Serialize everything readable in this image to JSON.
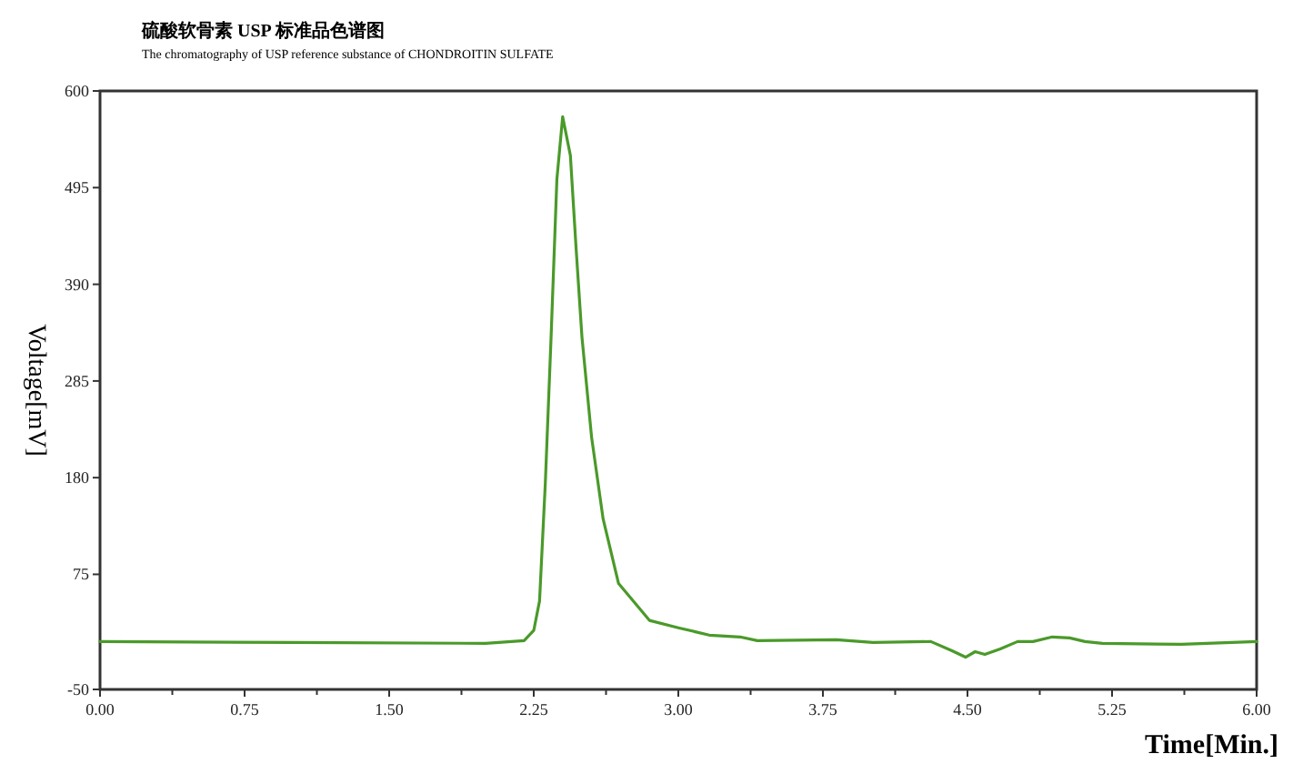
{
  "chart_data": {
    "type": "line",
    "title": "硫酸软骨素 USP 标准品色谱图",
    "subtitle": "The chromatography of USP reference substance of CHONDROITIN SULFATE",
    "xlabel": "Time[Min.]",
    "ylabel": "Voltage[mV]",
    "x": [
      0,
      1.0,
      2.0,
      2.2,
      2.25,
      2.28,
      2.31,
      2.34,
      2.37,
      2.4,
      2.44,
      2.47,
      2.5,
      2.55,
      2.61,
      2.69,
      2.85,
      3.0,
      3.16,
      3.32,
      3.41,
      3.82,
      4.01,
      4.31,
      4.42,
      4.49,
      4.54,
      4.59,
      4.67,
      4.76,
      4.84,
      4.94,
      5.03,
      5.11,
      5.2,
      5.61,
      5.87,
      6.0
    ],
    "series": [
      {
        "color": "#4a9a2a",
        "values": [
          2,
          1,
          0,
          3,
          14,
          46,
          174,
          333,
          504,
          572,
          530,
          428,
          333,
          224,
          135,
          65,
          25,
          17,
          9,
          7,
          3,
          4,
          1,
          2,
          -8,
          -15,
          -9,
          -12,
          -6,
          2,
          2,
          7,
          6,
          2,
          0,
          -1,
          1,
          2
        ]
      }
    ],
    "xlim": [
      0,
      6
    ],
    "xticks": [
      {
        "value": 0,
        "label": "0.00"
      },
      {
        "value": 0.375,
        "label": null
      },
      {
        "value": 0.75,
        "label": "0.75"
      },
      {
        "value": 1.125,
        "label": null
      },
      {
        "value": 1.5,
        "label": "1.50"
      },
      {
        "value": 1.875,
        "label": null
      },
      {
        "value": 2.25,
        "label": "2.25"
      },
      {
        "value": 2.625,
        "label": null
      },
      {
        "value": 3,
        "label": "3.00"
      },
      {
        "value": 3.375,
        "label": null
      },
      {
        "value": 3.75,
        "label": "3.75"
      },
      {
        "value": 4.125,
        "label": null
      },
      {
        "value": 4.5,
        "label": "4.50"
      },
      {
        "value": 4.875,
        "label": null
      },
      {
        "value": 5.25,
        "label": "5.25"
      },
      {
        "value": 5.625,
        "label": null
      },
      {
        "value": 6,
        "label": "6.00"
      }
    ],
    "ylim": [
      -50,
      600
    ],
    "yticks": [
      -50,
      75,
      180,
      285,
      390,
      495,
      600
    ],
    "grid": false,
    "marker": "none",
    "line_style": "solid"
  }
}
